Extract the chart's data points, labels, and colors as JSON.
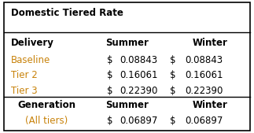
{
  "title": "Domestic Tiered Rate",
  "delivery_header": [
    "Delivery",
    "Summer",
    "Winter"
  ],
  "delivery_rows": [
    {
      "label": "Baseline",
      "summer": "0.08843",
      "winter": "0.08843"
    },
    {
      "label": "Tier 2",
      "summer": "0.16061",
      "winter": "0.16061"
    },
    {
      "label": "Tier 3",
      "summer": "0.22390",
      "winter": "0.22390"
    }
  ],
  "generation_header": [
    "Generation",
    "Summer",
    "Winter"
  ],
  "generation_rows": [
    {
      "label": "(All tiers)",
      "summer": "0.06897",
      "winter": "0.06897"
    }
  ],
  "label_color": "#c8820a",
  "header_color": "#000000",
  "bg_color": "#ffffff",
  "border_color": "#000000",
  "font_size": 8.5
}
